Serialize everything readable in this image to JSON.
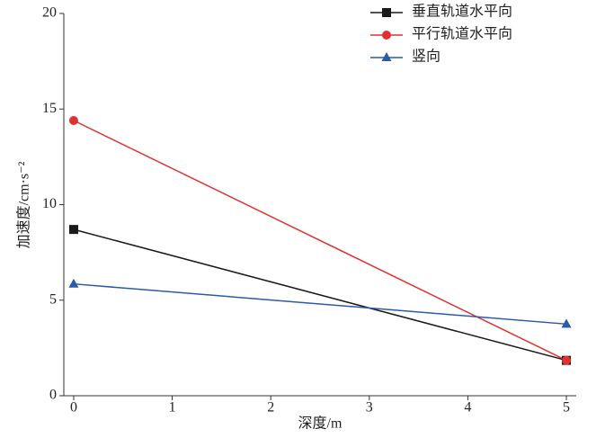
{
  "chart_data": {
    "type": "line",
    "xlabel": "深度/m",
    "ylabel": "加速度/cm·s⁻²",
    "x": [
      0,
      5
    ],
    "series": [
      {
        "name": "垂直轨道水平向",
        "color": "#1a1a1a",
        "marker": "square",
        "values": [
          8.7,
          1.85
        ]
      },
      {
        "name": "平行轨道水平向",
        "color": "#e03030",
        "marker": "circle",
        "values": [
          14.4,
          1.85
        ]
      },
      {
        "name": "竖向",
        "color": "#2a5aa8",
        "marker": "triangle",
        "values": [
          5.85,
          3.75
        ]
      }
    ],
    "xlim": [
      -0.1,
      5.1
    ],
    "ylim": [
      0,
      20
    ],
    "xticks": [
      0,
      1,
      2,
      3,
      4,
      5
    ],
    "yticks": [
      0,
      5,
      10,
      15,
      20
    ],
    "legend": "upper right",
    "grid": false
  }
}
